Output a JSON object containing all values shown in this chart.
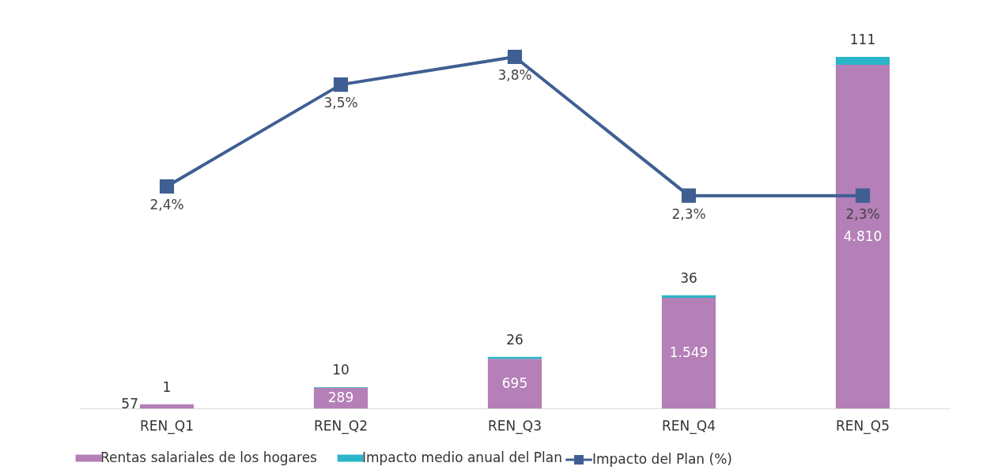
{
  "chart_data": {
    "type": "bar",
    "stacked": true,
    "categories": [
      "REN_Q1",
      "REN_Q2",
      "REN_Q3",
      "REN_Q4",
      "REN_Q5"
    ],
    "series": [
      {
        "name": "Rentas salariales de los hogares",
        "color": "#b57fb8",
        "values": [
          57,
          289,
          695,
          1549,
          4810
        ],
        "value_labels": [
          "57",
          "289",
          "695",
          "1.549",
          "4.810"
        ]
      },
      {
        "name": "Impacto medio anual del Plan",
        "color": "#2bb5c8",
        "values": [
          1,
          10,
          26,
          36,
          111
        ],
        "value_labels": [
          "1",
          "10",
          "26",
          "36",
          "111"
        ]
      },
      {
        "name": "Impacto del Plan (%)",
        "type": "line",
        "axis": "y2",
        "color": "#3f5f93",
        "marker": "square",
        "values": [
          2.4,
          3.5,
          3.8,
          2.3,
          2.3
        ],
        "value_labels": [
          "2,4%",
          "3,5%",
          "3,8%",
          "2,3%",
          "2,3%"
        ]
      }
    ],
    "tick_labels": "x",
    "legend": "bottom"
  }
}
